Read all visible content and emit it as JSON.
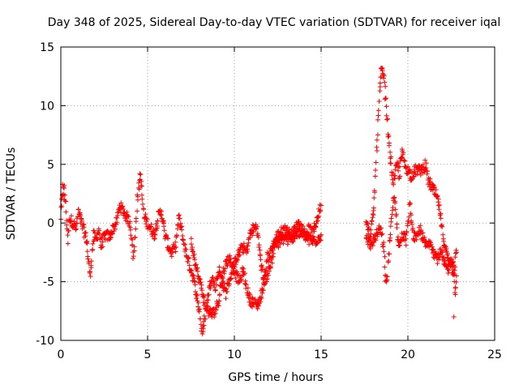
{
  "chart_data": {
    "type": "scatter",
    "title": "Day 348 of 2025, Sidereal Day-to-day VTEC variation (SDTVAR) for receiver iqal",
    "xlabel": "GPS time / hours",
    "ylabel": "SDTVAR / TECUs",
    "xlim": [
      0,
      25
    ],
    "ylim": [
      -10,
      15
    ],
    "xticks": [
      0,
      5,
      10,
      15,
      20,
      25
    ],
    "yticks": [
      -10,
      -5,
      0,
      5,
      10,
      15
    ],
    "xtick_labels": [
      "0",
      "5",
      "10",
      "15",
      "20",
      "25"
    ],
    "ytick_labels": [
      "-10",
      "-5",
      "0",
      "5",
      "10",
      "15"
    ],
    "grid": true,
    "marker": "+",
    "color": "#ff0000",
    "series": [
      {
        "name": "iqal",
        "trace": [
          [
            0.0,
            0.5
          ],
          [
            0.1,
            2.5
          ],
          [
            0.2,
            3.0
          ],
          [
            0.3,
            1.0
          ],
          [
            0.4,
            -1.5
          ],
          [
            0.5,
            0.5
          ],
          [
            0.7,
            0.0
          ],
          [
            0.9,
            -0.5
          ],
          [
            1.0,
            1.0
          ],
          [
            1.2,
            0.0
          ],
          [
            1.4,
            -1.0
          ],
          [
            1.5,
            -1.5
          ],
          [
            1.6,
            -3.5
          ],
          [
            1.7,
            -4.5
          ],
          [
            1.8,
            -2.5
          ],
          [
            1.9,
            -1.0
          ],
          [
            2.0,
            -1.5
          ],
          [
            2.2,
            -0.5
          ],
          [
            2.3,
            -2.0
          ],
          [
            2.4,
            -1.5
          ],
          [
            2.6,
            -1.0
          ],
          [
            2.8,
            -1.2
          ],
          [
            3.0,
            -0.5
          ],
          [
            3.2,
            0.0
          ],
          [
            3.4,
            1.5
          ],
          [
            3.6,
            1.0
          ],
          [
            3.8,
            0.5
          ],
          [
            4.0,
            0.0
          ],
          [
            4.1,
            -1.5
          ],
          [
            4.2,
            -3.0
          ],
          [
            4.3,
            -1.0
          ],
          [
            4.4,
            2.0
          ],
          [
            4.5,
            3.0
          ],
          [
            4.6,
            4.0
          ],
          [
            4.7,
            2.0
          ],
          [
            4.8,
            0.5
          ],
          [
            5.0,
            0.0
          ],
          [
            5.2,
            -0.5
          ],
          [
            5.4,
            -1.0
          ],
          [
            5.6,
            0.5
          ],
          [
            5.8,
            1.0
          ],
          [
            6.0,
            -1.0
          ],
          [
            6.2,
            -2.0
          ],
          [
            6.4,
            -2.5
          ],
          [
            6.6,
            -2.0
          ],
          [
            6.8,
            0.5
          ],
          [
            7.0,
            -1.0
          ],
          [
            7.2,
            -2.5
          ],
          [
            7.4,
            -3.5
          ],
          [
            7.6,
            -4.5
          ],
          [
            7.8,
            -6.0
          ],
          [
            8.0,
            -7.5
          ],
          [
            8.1,
            -9.0
          ],
          [
            8.2,
            -9.3
          ],
          [
            8.3,
            -8.0
          ],
          [
            8.5,
            -6.0
          ],
          [
            8.7,
            -4.5
          ],
          [
            8.9,
            -5.5
          ],
          [
            9.1,
            -4.0
          ],
          [
            9.3,
            -5.0
          ],
          [
            9.5,
            -6.0
          ],
          [
            9.7,
            -5.0
          ],
          [
            9.9,
            -4.0
          ],
          [
            10.1,
            -3.0
          ],
          [
            10.3,
            -2.5
          ],
          [
            10.5,
            -2.0
          ],
          [
            10.7,
            -2.5
          ],
          [
            10.9,
            -1.0
          ],
          [
            11.1,
            -0.5
          ],
          [
            11.3,
            -0.3
          ],
          [
            11.5,
            -3.0
          ],
          [
            11.7,
            -5.0
          ],
          [
            11.9,
            -4.5
          ],
          [
            12.1,
            -3.5
          ],
          [
            12.3,
            -2.0
          ],
          [
            12.5,
            -1.0
          ],
          [
            12.7,
            -0.8
          ],
          [
            12.9,
            -0.5
          ],
          [
            13.1,
            -0.8
          ],
          [
            13.3,
            -1.0
          ],
          [
            13.5,
            -0.5
          ],
          [
            13.7,
            0.0
          ],
          [
            13.9,
            -0.5
          ],
          [
            14.1,
            -1.0
          ],
          [
            14.3,
            -0.5
          ],
          [
            14.5,
            -1.0
          ],
          [
            14.7,
            0.0
          ],
          [
            14.9,
            1.0
          ],
          [
            15.0,
            1.5
          ]
        ],
        "trace2": [
          [
            7.5,
            -1.5
          ],
          [
            7.7,
            -3.0
          ],
          [
            7.9,
            -4.5
          ],
          [
            8.1,
            -5.5
          ],
          [
            8.3,
            -7.0
          ],
          [
            8.5,
            -7.5
          ],
          [
            8.7,
            -7.8
          ],
          [
            8.9,
            -7.5
          ],
          [
            9.1,
            -6.5
          ],
          [
            9.3,
            -4.5
          ],
          [
            9.5,
            -3.5
          ],
          [
            9.7,
            -3.0
          ],
          [
            9.9,
            -3.5
          ],
          [
            10.1,
            -4.5
          ],
          [
            10.3,
            -5.0
          ],
          [
            10.5,
            -4.0
          ],
          [
            10.7,
            -5.5
          ],
          [
            10.9,
            -6.5
          ],
          [
            11.1,
            -6.8
          ],
          [
            11.3,
            -7.0
          ],
          [
            11.5,
            -6.5
          ],
          [
            11.7,
            -5.0
          ],
          [
            11.9,
            -3.0
          ],
          [
            12.1,
            -2.5
          ],
          [
            12.3,
            -1.5
          ],
          [
            12.5,
            -1.8
          ],
          [
            12.7,
            -1.5
          ],
          [
            12.9,
            -1.2
          ],
          [
            13.1,
            -1.5
          ],
          [
            13.5,
            -1.0
          ],
          [
            13.9,
            -0.8
          ],
          [
            14.3,
            -1.5
          ],
          [
            14.7,
            -1.5
          ],
          [
            15.0,
            -1.0
          ]
        ],
        "trace3": [
          [
            17.6,
            0.0
          ],
          [
            17.8,
            -1.0
          ],
          [
            18.0,
            0.5
          ],
          [
            18.1,
            3.0
          ],
          [
            18.2,
            6.0
          ],
          [
            18.3,
            9.0
          ],
          [
            18.4,
            11.5
          ],
          [
            18.5,
            13.0
          ],
          [
            18.6,
            12.5
          ],
          [
            18.7,
            11.0
          ],
          [
            18.8,
            9.0
          ],
          [
            18.9,
            7.0
          ],
          [
            19.0,
            5.5
          ],
          [
            19.1,
            4.0
          ],
          [
            19.2,
            3.5
          ],
          [
            19.3,
            4.5
          ],
          [
            19.4,
            5.0
          ],
          [
            19.5,
            4.0
          ],
          [
            19.6,
            5.5
          ],
          [
            19.7,
            6.0
          ],
          [
            19.8,
            5.0
          ],
          [
            20.0,
            4.5
          ],
          [
            20.2,
            4.0
          ],
          [
            20.4,
            4.5
          ],
          [
            20.6,
            4.5
          ],
          [
            20.8,
            4.5
          ],
          [
            21.0,
            5.0
          ],
          [
            21.2,
            3.5
          ],
          [
            21.4,
            3.0
          ],
          [
            21.6,
            2.5
          ],
          [
            21.8,
            1.5
          ],
          [
            22.0,
            -1.0
          ],
          [
            22.2,
            -2.5
          ],
          [
            22.4,
            -3.5
          ],
          [
            22.6,
            -3.0
          ],
          [
            22.7,
            -6.0
          ],
          [
            22.8,
            -4.5
          ]
        ],
        "trace4": [
          [
            17.6,
            -1.0
          ],
          [
            17.8,
            -2.0
          ],
          [
            18.0,
            -1.5
          ],
          [
            18.2,
            -1.0
          ],
          [
            18.4,
            -0.5
          ],
          [
            18.6,
            -2.0
          ],
          [
            18.7,
            -4.5
          ],
          [
            18.8,
            -5.0
          ],
          [
            18.9,
            -2.5
          ],
          [
            19.0,
            -1.0
          ],
          [
            19.1,
            1.0
          ],
          [
            19.2,
            2.5
          ],
          [
            19.3,
            1.0
          ],
          [
            19.4,
            -1.0
          ],
          [
            19.5,
            -2.0
          ],
          [
            19.7,
            -1.0
          ],
          [
            19.9,
            -1.5
          ],
          [
            20.1,
            1.5
          ],
          [
            20.3,
            -1.0
          ],
          [
            20.5,
            -1.5
          ],
          [
            20.7,
            -0.5
          ],
          [
            20.9,
            -1.5
          ],
          [
            21.1,
            -2.0
          ],
          [
            21.3,
            -1.5
          ],
          [
            21.5,
            -2.5
          ],
          [
            21.7,
            -3.0
          ],
          [
            21.9,
            -2.5
          ],
          [
            22.1,
            -3.5
          ],
          [
            22.3,
            -4.0
          ],
          [
            22.5,
            -3.0
          ],
          [
            22.6,
            -4.5
          ],
          [
            22.8,
            -2.5
          ]
        ],
        "spike": [
          [
            0.1,
            3.3
          ],
          [
            0.2,
            2.0
          ],
          [
            4.55,
            4.2
          ],
          [
            18.45,
            13.2
          ],
          [
            22.65,
            -8.0
          ]
        ]
      }
    ]
  }
}
